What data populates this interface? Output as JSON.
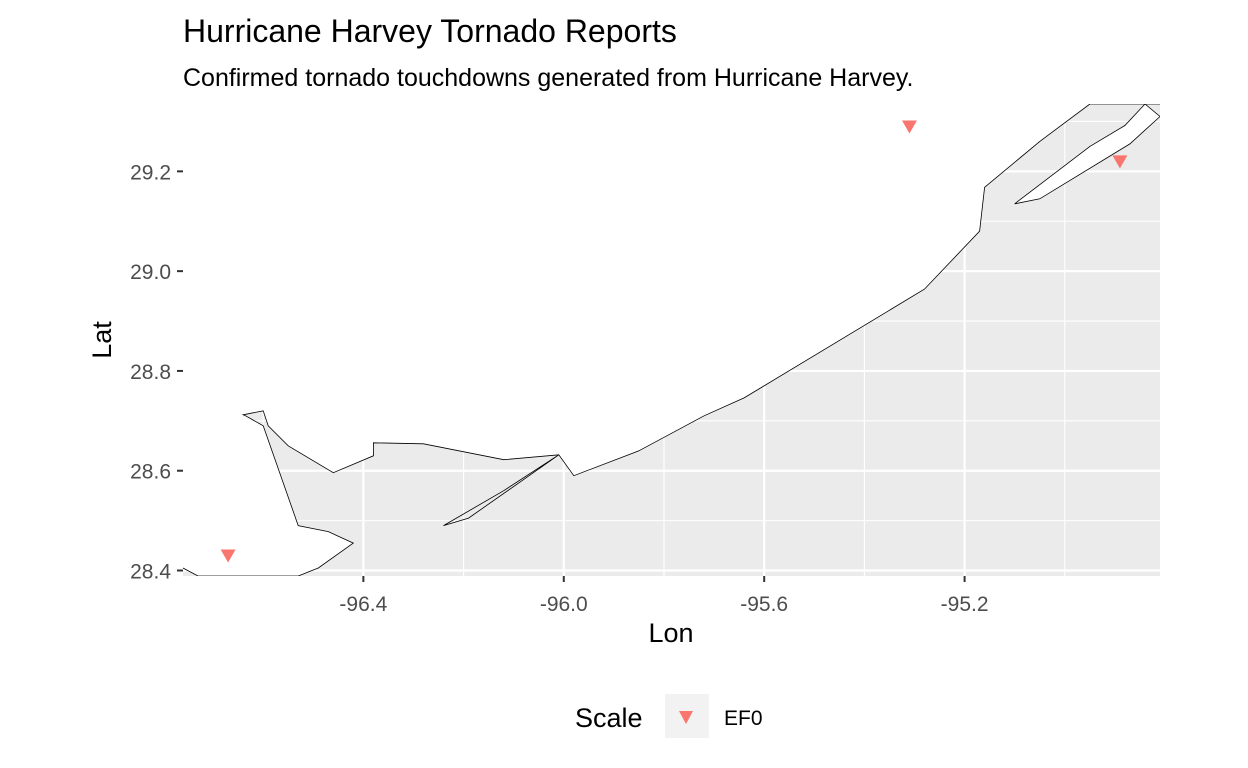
{
  "chart_data": {
    "type": "scatter",
    "title": "Hurricane Harvey Tornado Reports",
    "subtitle": "Confirmed tornado touchdowns generated from Hurricane Harvey.",
    "xlabel": "Lon",
    "ylabel": "Lat",
    "xlim": [
      -96.76,
      -94.81
    ],
    "ylim": [
      28.389,
      29.335
    ],
    "x_ticks": [
      -96.4,
      -96.0,
      -95.6,
      -95.2
    ],
    "x_tick_labels": [
      "-96.4",
      "-96.0",
      "-95.6",
      "-95.2"
    ],
    "y_ticks": [
      28.4,
      28.6,
      28.8,
      29.0,
      29.2
    ],
    "y_tick_labels": [
      "28.4",
      "28.6",
      "28.8",
      "29.0",
      "29.2"
    ],
    "grid": true,
    "legend": {
      "title": "Scale",
      "position": "bottom",
      "entries": [
        {
          "label": "EF0",
          "color": "#F8766D",
          "shape": "triangle-down"
        }
      ]
    },
    "series": [
      {
        "name": "EF0",
        "color": "#F8766D",
        "points": [
          {
            "lon": -96.67,
            "lat": 28.43
          },
          {
            "lon": -95.31,
            "lat": 29.29
          },
          {
            "lon": -94.89,
            "lat": 29.22
          }
        ]
      }
    ],
    "land": {
      "fill": "#EBEBEB",
      "stroke": "#000000",
      "coast_outline": [
        [
          -96.76,
          28.405
        ],
        [
          -96.73,
          28.389
        ],
        [
          -96.53,
          28.389
        ],
        [
          -96.49,
          28.405
        ],
        [
          -96.42,
          28.455
        ],
        [
          -96.47,
          28.478
        ],
        [
          -96.53,
          28.49
        ],
        [
          -96.6,
          28.69
        ],
        [
          -96.635,
          28.71
        ],
        [
          -96.64,
          28.712
        ],
        [
          -96.6,
          28.72
        ],
        [
          -96.59,
          28.69
        ],
        [
          -96.55,
          28.65
        ],
        [
          -96.46,
          28.596
        ],
        [
          -96.38,
          28.63
        ],
        [
          -96.38,
          28.656
        ],
        [
          -96.28,
          28.654
        ],
        [
          -96.12,
          28.622
        ],
        [
          -96.01,
          28.632
        ],
        [
          -95.98,
          28.59
        ],
        [
          -95.85,
          28.64
        ],
        [
          -95.72,
          28.71
        ],
        [
          -95.64,
          28.746
        ],
        [
          -95.28,
          28.964
        ],
        [
          -95.17,
          29.08
        ],
        [
          -95.16,
          29.168
        ],
        [
          -95.05,
          29.26
        ],
        [
          -94.95,
          29.335
        ],
        [
          -94.81,
          29.335
        ]
      ],
      "spit_outline": [
        [
          -96.24,
          28.49
        ],
        [
          -96.19,
          28.505
        ],
        [
          -96.01,
          28.632
        ],
        [
          -96.12,
          28.56
        ]
      ],
      "bay_outline": [
        [
          -95.1,
          29.135
        ],
        [
          -95.05,
          29.145
        ],
        [
          -94.87,
          29.255
        ],
        [
          -94.81,
          29.31
        ],
        [
          -94.84,
          29.335
        ],
        [
          -94.88,
          29.292
        ],
        [
          -94.95,
          29.25
        ]
      ]
    }
  }
}
